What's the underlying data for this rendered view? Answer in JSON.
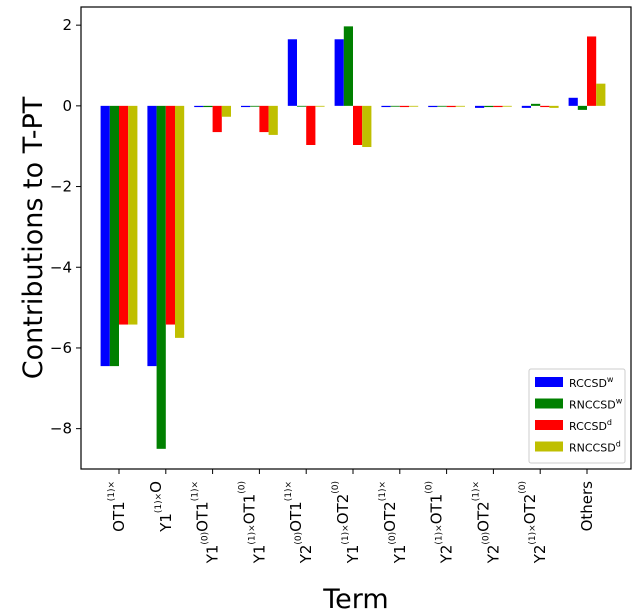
{
  "chart_data": {
    "type": "bar",
    "xlabel": "Term",
    "ylabel": "Contributions to T-PT",
    "ylim": [
      -9.0,
      2.45
    ],
    "yticks": [
      2,
      0,
      -2,
      -4,
      -6,
      -8
    ],
    "ytick_labels": [
      "2",
      "0",
      "−2",
      "−4",
      "−6",
      "−8"
    ],
    "categories": [
      {
        "base": "OT",
        "parts": [
          [
            "OT",
            ""
          ],
          [
            "1",
            "(1)×"
          ]
        ]
      },
      {
        "base": "Y",
        "parts": [
          [
            "Y",
            ""
          ],
          [
            "1",
            "(1)×"
          ],
          [
            "O",
            ""
          ]
        ]
      },
      {
        "base": "Y",
        "parts": [
          [
            "Y",
            ""
          ],
          [
            "1",
            "(0)"
          ],
          [
            "OT",
            ""
          ],
          [
            "1",
            "(1)×"
          ]
        ]
      },
      {
        "base": "Y",
        "parts": [
          [
            "Y",
            ""
          ],
          [
            "1",
            "(1)×"
          ],
          [
            "OT",
            ""
          ],
          [
            "1",
            "(0)"
          ]
        ]
      },
      {
        "base": "Y",
        "parts": [
          [
            "Y",
            ""
          ],
          [
            "2",
            "(0)"
          ],
          [
            "OT",
            ""
          ],
          [
            "1",
            "(1)×"
          ]
        ]
      },
      {
        "base": "Y",
        "parts": [
          [
            "Y",
            ""
          ],
          [
            "1",
            "(1)×"
          ],
          [
            "OT",
            ""
          ],
          [
            "2",
            "(0)"
          ]
        ]
      },
      {
        "base": "Y",
        "parts": [
          [
            "Y",
            ""
          ],
          [
            "1",
            "(0)"
          ],
          [
            "OT",
            ""
          ],
          [
            "2",
            "(1)×"
          ]
        ]
      },
      {
        "base": "Y",
        "parts": [
          [
            "Y",
            ""
          ],
          [
            "2",
            "(1)×"
          ],
          [
            "OT",
            ""
          ],
          [
            "1",
            "(0)"
          ]
        ]
      },
      {
        "base": "Y",
        "parts": [
          [
            "Y",
            ""
          ],
          [
            "2",
            "(0)"
          ],
          [
            "OT",
            ""
          ],
          [
            "2",
            "(1)×"
          ]
        ]
      },
      {
        "base": "Y",
        "parts": [
          [
            "Y",
            ""
          ],
          [
            "2",
            "(1)×"
          ],
          [
            "OT",
            ""
          ],
          [
            "2",
            "(0)"
          ]
        ]
      },
      {
        "base": "Others",
        "parts": [
          [
            "Others",
            ""
          ]
        ]
      }
    ],
    "series": [
      {
        "name": "RCCSD",
        "sup": "w",
        "color": "#0000ff",
        "values": [
          -6.45,
          -6.45,
          -0.03,
          -0.03,
          1.65,
          1.65,
          -0.03,
          -0.03,
          -0.05,
          -0.05,
          0.2
        ]
      },
      {
        "name": "RNCCSD",
        "sup": "w",
        "color": "#008000",
        "values": [
          -6.45,
          -8.5,
          -0.03,
          -0.02,
          0.0,
          1.97,
          -0.02,
          -0.01,
          -0.03,
          0.05,
          -0.1
        ]
      },
      {
        "name": "RCCSD",
        "sup": "d",
        "color": "#ff0000",
        "values": [
          -5.42,
          -5.42,
          -0.65,
          -0.65,
          -0.97,
          -0.97,
          -0.03,
          -0.03,
          -0.03,
          -0.03,
          1.72
        ]
      },
      {
        "name": "RNCCSD",
        "sup": "d",
        "color": "#bfbf00",
        "values": [
          -5.42,
          -5.75,
          -0.27,
          -0.72,
          0.0,
          -1.02,
          -0.02,
          -0.02,
          -0.02,
          -0.05,
          0.55
        ]
      }
    ],
    "legend_position": "lower-right",
    "grid": false
  }
}
